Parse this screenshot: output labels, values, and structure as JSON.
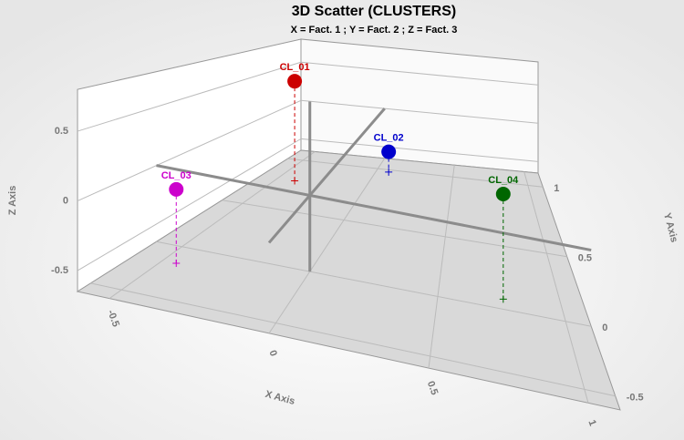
{
  "chart_data": {
    "type": "scatter3d",
    "title": "3D Scatter (CLUSTERS)",
    "subtitle": "X = Fact. 1 ; Y = Fact. 2 ; Z = Fact. 3",
    "x_label": "X Axis",
    "y_label": "Y Axis",
    "z_label": "Z Axis",
    "xlim": [
      -0.6,
      1.1
    ],
    "ylim": [
      -0.6,
      1.1
    ],
    "zlim": [
      -0.65,
      0.8
    ],
    "xticks": [
      -0.5,
      0.0,
      0.5,
      1.0
    ],
    "yticks": [
      -0.5,
      0.0,
      0.5,
      1.0
    ],
    "zticks": [
      -0.5,
      0.0,
      0.5
    ],
    "grid": true,
    "points": [
      {
        "label": "CL_01",
        "color": "#cc0000",
        "x": -0.4,
        "y": 0.79,
        "z": 0.48
      },
      {
        "label": "CL_02",
        "color": "#0000cc",
        "x": 0.08,
        "y": 0.98,
        "z": -0.4
      },
      {
        "label": "CL_03",
        "color": "#cc00cc",
        "x": -0.45,
        "y": -0.16,
        "z": -0.05
      },
      {
        "label": "CL_04",
        "color": "#006600",
        "x": 0.76,
        "y": 0.08,
        "z": 0.27
      }
    ]
  }
}
